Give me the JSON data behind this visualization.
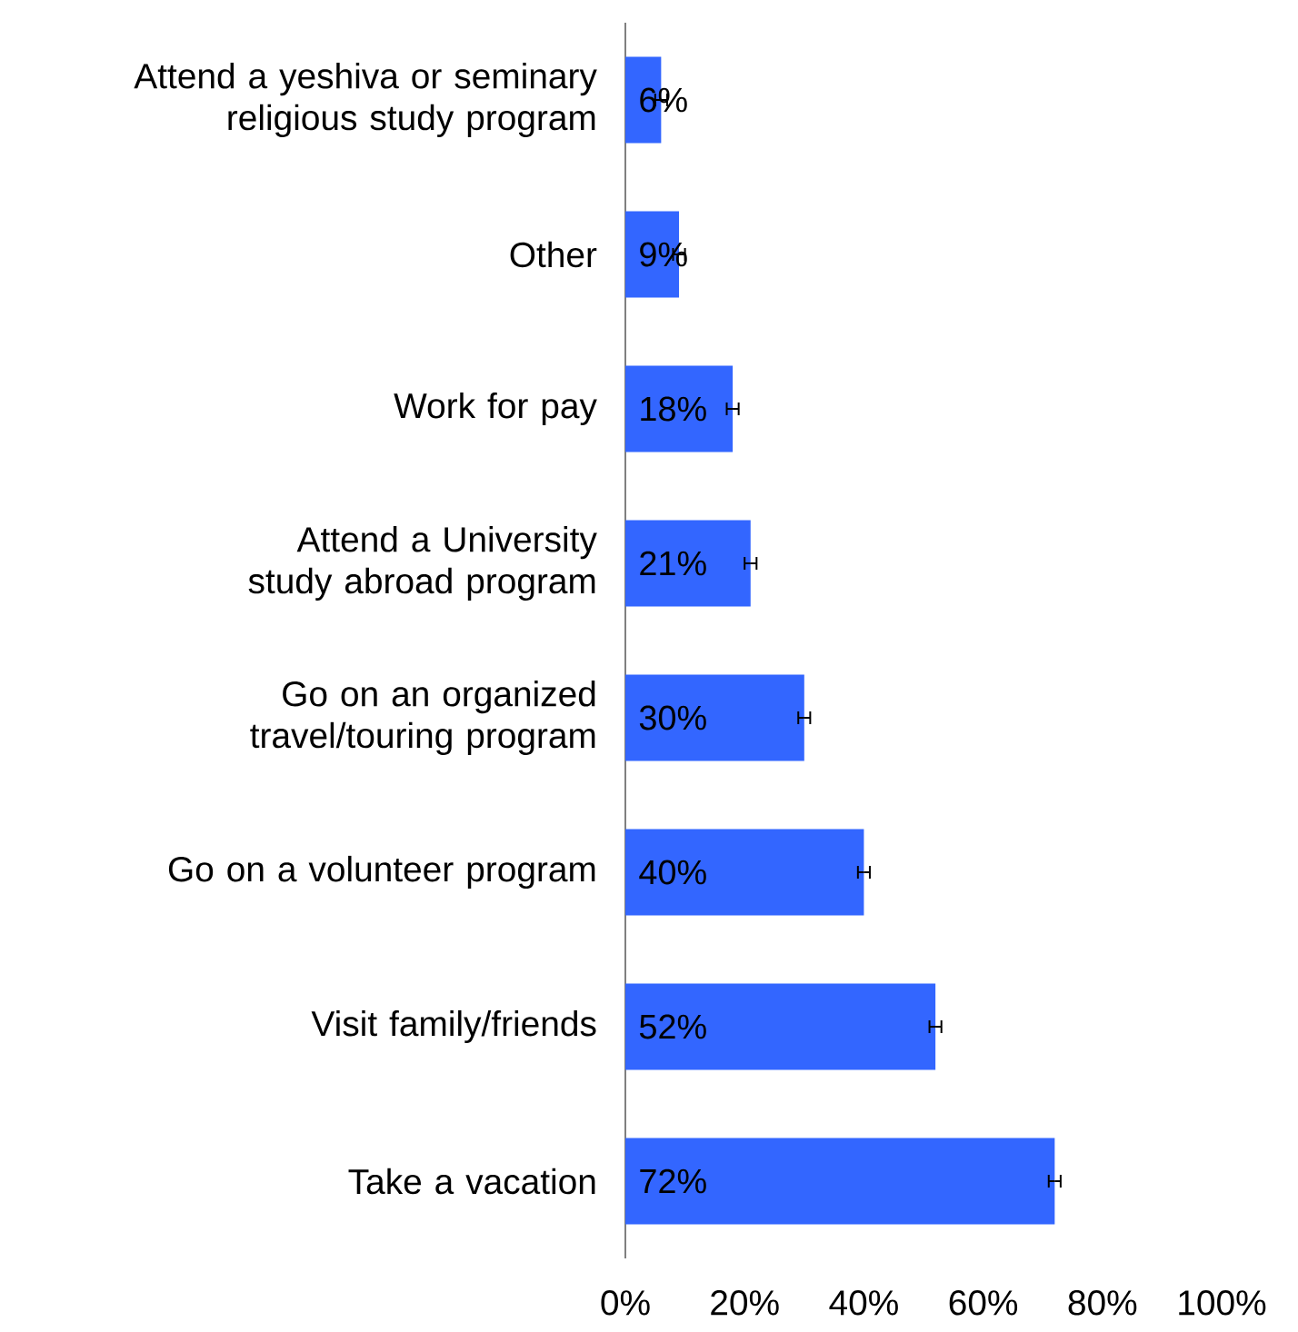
{
  "chart_data": {
    "type": "bar",
    "orientation": "horizontal",
    "categories": [
      "Attend a yeshiva or seminary religious study program",
      "Other",
      "Work for pay",
      "Attend a University study abroad program",
      "Go on an organized travel/touring program",
      "Go on a volunteer program",
      "Visit family/friends",
      "Take a vacation"
    ],
    "values": [
      6,
      9,
      18,
      21,
      30,
      40,
      52,
      72
    ],
    "value_labels": [
      "6%",
      "9%",
      "18%",
      "21%",
      "30%",
      "40%",
      "52%",
      "72%"
    ],
    "errors": [
      1,
      1,
      1,
      1,
      1,
      1,
      1,
      1
    ],
    "color": "#3366ff",
    "xlim": [
      0,
      100
    ],
    "xticks": [
      {
        "value": 0,
        "label": "0%"
      },
      {
        "value": 20,
        "label": "20%"
      },
      {
        "value": 40,
        "label": "40%"
      },
      {
        "value": 60,
        "label": "60%"
      },
      {
        "value": 80,
        "label": "80%"
      },
      {
        "value": 100,
        "label": "100%"
      }
    ]
  }
}
